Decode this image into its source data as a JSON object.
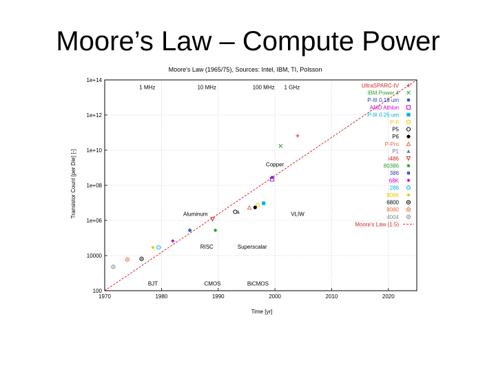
{
  "slide": {
    "title": "Moore’s Law – Compute Power"
  },
  "chart_data": {
    "type": "scatter",
    "title": "Moore's Law (1965/75), Sources: Intel, IBM, TI, Polsson",
    "xlabel": "Time [yr]",
    "ylabel": "Transistor Count [per Die] [-]",
    "x_scale": "linear",
    "y_scale": "log",
    "xlim": [
      1970,
      2025
    ],
    "ylim": [
      100,
      100000000000000
    ],
    "x_ticks": [
      "1970",
      "1980",
      "1990",
      "2000",
      "2010",
      "2020"
    ],
    "x_tick_values": [
      1970,
      1980,
      1990,
      2000,
      2010,
      2020
    ],
    "y_ticks": [
      "100",
      "10000",
      "1e+06",
      "1e+08",
      "1e+10",
      "1e+12",
      "1e+14"
    ],
    "y_tick_values": [
      100,
      10000,
      1000000,
      100000000,
      10000000000,
      1000000000000,
      100000000000000
    ],
    "grid": true,
    "legend_position": "top-right",
    "annotations": [
      {
        "text": "1 MHz",
        "x": 1977.5,
        "y": 30000000000000
      },
      {
        "text": "10 MHz",
        "x": 1988,
        "y": 30000000000000
      },
      {
        "text": "100 MHz",
        "x": 1998,
        "y": 30000000000000
      },
      {
        "text": "1 GHz",
        "x": 2003,
        "y": 30000000000000
      },
      {
        "text": "Copper",
        "x": 2000,
        "y": 1200000000
      },
      {
        "text": "Aluminum",
        "x": 1986,
        "y": 1800000
      },
      {
        "text": "VLIW",
        "x": 2004,
        "y": 1800000
      },
      {
        "text": "RISC",
        "x": 1988,
        "y": 25000
      },
      {
        "text": "Superscalar",
        "x": 1996,
        "y": 25000
      },
      {
        "text": "BJT",
        "x": 1978.5,
        "y": 200
      },
      {
        "text": "CMOS",
        "x": 1989,
        "y": 200
      },
      {
        "text": "BiCMOS",
        "x": 1997,
        "y": 200
      }
    ],
    "series": [
      {
        "name": "UltraSPARC-IV",
        "marker": "plus",
        "color": "#d62728",
        "x": [
          2004
        ],
        "y": [
          66000000000
        ]
      },
      {
        "name": "IBM Power 4",
        "marker": "x",
        "color": "#2ca02c",
        "x": [
          2001
        ],
        "y": [
          17400000000
        ]
      },
      {
        "name": "P-III 0.18 um",
        "marker": "asterisk",
        "color": "#1f3fbf",
        "x": [
          1999.5
        ],
        "y": [
          280000000
        ]
      },
      {
        "name": "AMD Athlon",
        "marker": "square",
        "color": "#cc00cc",
        "x": [
          1999.5
        ],
        "y": [
          220000000
        ]
      },
      {
        "name": "P-III 0.25 um",
        "marker": "square-filled",
        "color": "#00b3e6",
        "x": [
          1998
        ],
        "y": [
          9500000
        ]
      },
      {
        "name": "P-II",
        "marker": "circle",
        "color": "#e6c800",
        "x": [
          1997
        ],
        "y": [
          7500000
        ]
      },
      {
        "name": "P5",
        "marker": "circle",
        "color": "#000000",
        "x": [
          1993
        ],
        "y": [
          3100000
        ]
      },
      {
        "name": "P6",
        "marker": "circle-filled",
        "color": "#000000",
        "x": [
          1996.5
        ],
        "y": [
          5500000
        ]
      },
      {
        "name": "P-Pro",
        "marker": "triangle",
        "color": "#e86a3a",
        "x": [
          1995.5
        ],
        "y": [
          5500000
        ]
      },
      {
        "name": "P1",
        "marker": "triangle-filled",
        "color": "#7777aa",
        "x": [
          1993.5
        ],
        "y": [
          3100000
        ]
      },
      {
        "name": "i486",
        "marker": "triangle-down",
        "color": "#d62728",
        "x": [
          1989
        ],
        "y": [
          1200000
        ]
      },
      {
        "name": "80386",
        "marker": "star",
        "color": "#2ca02c",
        "x": [
          1989.5
        ],
        "y": [
          275000
        ]
      },
      {
        "name": "386",
        "marker": "cross",
        "color": "#1f3fbf",
        "x": [
          1985
        ],
        "y": [
          275000
        ]
      },
      {
        "name": "68K",
        "marker": "diamond-filled",
        "color": "#cc00cc",
        "x": [
          1982
        ],
        "y": [
          68000
        ]
      },
      {
        "name": "286",
        "marker": "circle",
        "color": "#00b3e6",
        "x": [
          1979.5
        ],
        "y": [
          29000
        ]
      },
      {
        "name": "8086",
        "marker": "diamond-filled",
        "color": "#e6c800",
        "x": [
          1978.5
        ],
        "y": [
          29000
        ]
      },
      {
        "name": "6800",
        "marker": "circle-dot",
        "color": "#000000",
        "x": [
          1976.5
        ],
        "y": [
          6500
        ]
      },
      {
        "name": "8080",
        "marker": "circle-dot",
        "color": "#e86a3a",
        "x": [
          1974
        ],
        "y": [
          6000
        ]
      },
      {
        "name": "4004",
        "marker": "circle-dot",
        "color": "#888888",
        "x": [
          1971.5
        ],
        "y": [
          2300
        ]
      }
    ],
    "trend": {
      "name": "Moore's Law (1.5)",
      "color": "#d62728",
      "x": [
        1970,
        2025
      ],
      "y": [
        100,
        100000000000000
      ]
    }
  }
}
